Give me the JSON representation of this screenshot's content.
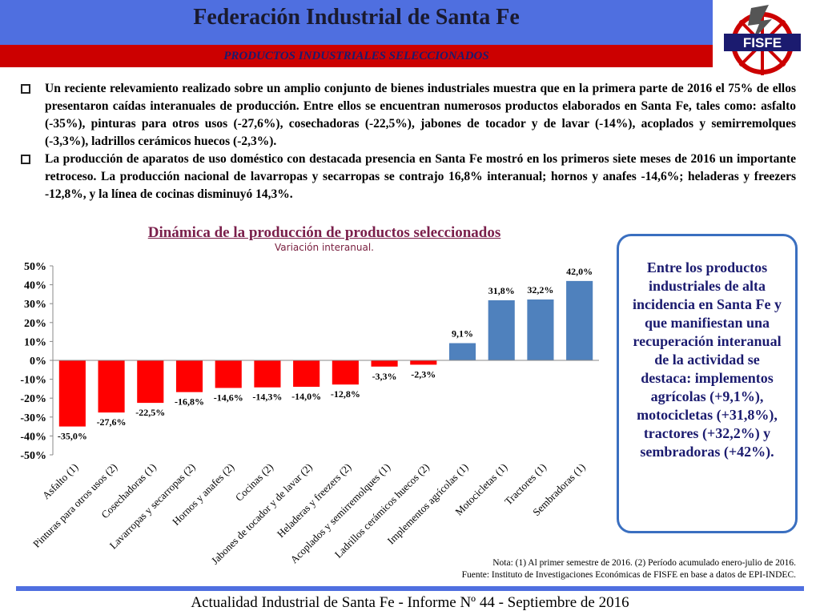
{
  "header": {
    "title": "Federación Industrial de Santa Fe",
    "subtitle": "PRODUCTOS INDUSTRIALES SELECCIONADOS",
    "logo_text": "FISFE"
  },
  "bullets": [
    "Un reciente relevamiento realizado sobre un amplio conjunto de bienes industriales muestra que en la primera parte de 2016 el 75% de ellos presentaron caídas interanuales de producción. Entre ellos se encuentran numerosos productos elaborados en Santa Fe, tales como: asfalto (-35%), pinturas para otros usos (-27,6%), cosechadoras (-22,5%), jabones de tocador y de lavar (-14%), acoplados y semirremolques (-3,3%), ladrillos cerámicos huecos (-2,3%).",
    "La producción de aparatos de uso doméstico con destacada presencia en Santa Fe mostró en los primeros siete meses de 2016 un importante retroceso. La producción nacional de lavarropas y secarropas se contrajo 16,8% interanual; hornos y anafes -14,6%; heladeras y freezers -12,8%, y la línea de cocinas disminuyó 14,3%."
  ],
  "colors": {
    "negative": "#ff0000",
    "positive": "#4f81bd",
    "header_blue": "#4f6fe0",
    "header_red": "#cc0000"
  },
  "chart_data": {
    "type": "bar",
    "title": "Dinámica de la producción de productos seleccionados",
    "subtitle": "Variación interanual.",
    "categories": [
      "Asfalto (1)",
      "Pinturas para otros usos (2)",
      "Cosechadoras (1)",
      "Lavarropas y secarropas (2)",
      "Hornos y anafes (2)",
      "Cocinas (2)",
      "Jabones de tocador y de lavar (2)",
      "Heladeras y freezers (2)",
      "Acoplados y semirremolques (1)",
      "Ladrillos cerámicos huecos (2)",
      "Implementos agrícolas (1)",
      "Motocicletas (1)",
      "Tractores (1)",
      "Sembradoras (1)"
    ],
    "values": [
      -35.0,
      -27.6,
      -22.5,
      -16.8,
      -14.6,
      -14.3,
      -14.0,
      -12.8,
      -3.3,
      -2.3,
      9.1,
      31.8,
      32.2,
      42.0
    ],
    "data_labels": [
      "-35,0%",
      "-27,6%",
      "-22,5%",
      "-16,8%",
      "-14,6%",
      "-14,3%",
      "-14,0%",
      "-12,8%",
      "-3,3%",
      "-2,3%",
      "9,1%",
      "31,8%",
      "32,2%",
      "42,0%"
    ],
    "yticks": [
      "50%",
      "40%",
      "30%",
      "20%",
      "10%",
      "0%",
      "-10%",
      "-20%",
      "-30%",
      "-40%",
      "-50%"
    ],
    "ylim": [
      -50,
      50
    ],
    "grid": false
  },
  "callout": "Entre los productos industriales de alta incidencia en Santa Fe y que manifiestan una recuperación interanual de la actividad se destaca: implementos agrícolas (+9,1%), motocicletas (+31,8%), tractores (+32,2%) y sembradoras (+42%).",
  "note": {
    "line1": "Nota: (1) Al primer semestre de 2016. (2) Período acumulado enero-julio de 2016.",
    "line2": "Fuente: Instituto de Investigaciones Económicas de  FISFE en base a datos de EPI-INDEC."
  },
  "footer": "Actualidad Industrial de Santa Fe - Informe Nº 44 - Septiembre de 2016"
}
